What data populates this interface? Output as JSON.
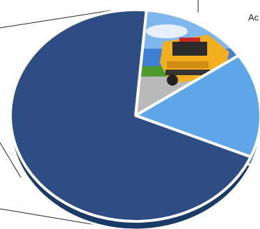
{
  "chart_data": {
    "type": "pie",
    "categories": [
      "Ac",
      null,
      null
    ],
    "values": [
      14,
      16,
      70
    ],
    "colors": [
      "url(#bus)",
      "#5ea6e8",
      "#2e4d84"
    ],
    "start_angle": 5
  }
}
